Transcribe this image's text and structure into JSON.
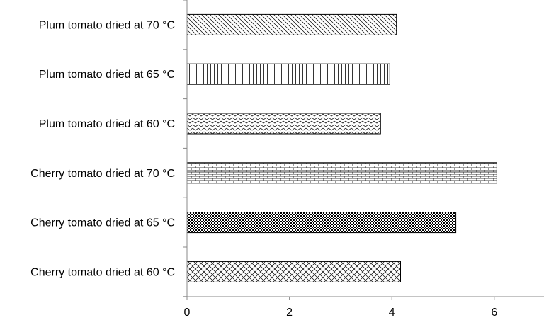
{
  "chart_data": {
    "type": "bar",
    "orientation": "horizontal",
    "title": "",
    "xlabel": "",
    "ylabel": "",
    "categories": [
      "Cherry tomato dried at 60 °C",
      "Cherry tomato dried at 65 °C",
      "Cherry tomato dried at 70 °C",
      "Plum tomato dried at 60 °C",
      "Plum tomato dried at 65 °C",
      "Plum tomato dried at 70 °C"
    ],
    "values": [
      4.17,
      5.25,
      6.05,
      3.78,
      3.96,
      4.09
    ],
    "patterns": [
      "crosshatch",
      "dense-checker",
      "brick",
      "wave",
      "vertical-lines",
      "diagonal"
    ],
    "xlim": [
      0,
      7
    ],
    "xticks": [
      0,
      2,
      4,
      6
    ],
    "grid": false,
    "legend": "none",
    "colors": {
      "bar_fill": "#ffffff",
      "bar_stroke": "#000000",
      "axis": "#888888"
    }
  }
}
